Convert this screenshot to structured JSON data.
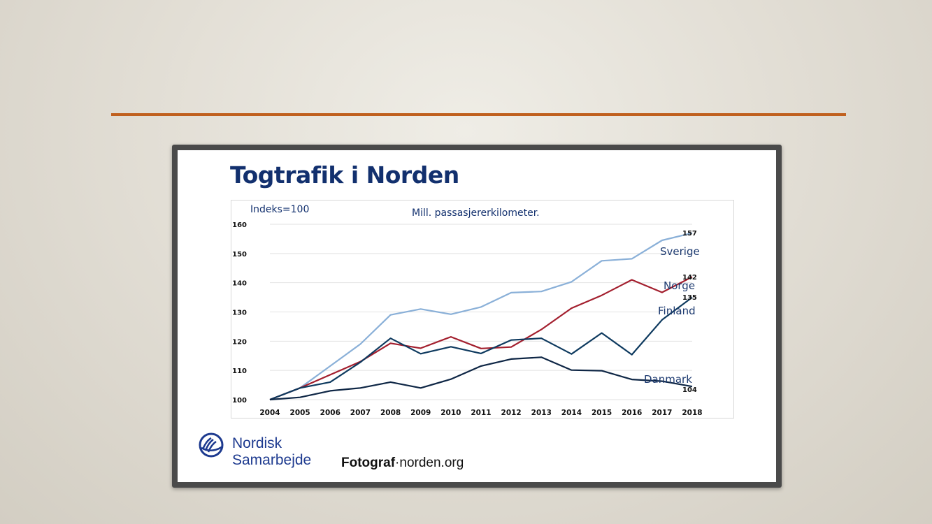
{
  "slide": {
    "title": "Togtrafik i Norden",
    "footer": {
      "org_line1": "Nordisk",
      "org_line2": "Samarbejde",
      "credit_bold": "Fotograf",
      "credit_rest": "·norden.org"
    }
  },
  "colors": {
    "rule": "#c0601e",
    "title": "#12306e",
    "logo": "#1d3a8f"
  },
  "chart_data": {
    "type": "line",
    "title": "Mill. passasjererkilometer.",
    "ylabel": "Indeks=100",
    "xlabel": "",
    "ylim": [
      100,
      160
    ],
    "yticks": [
      100,
      110,
      120,
      130,
      140,
      150,
      160
    ],
    "grid": true,
    "x": [
      "2004",
      "2005",
      "2006",
      "2007",
      "2008",
      "2009",
      "2010",
      "2011",
      "2012",
      "2013",
      "2014",
      "2015",
      "2016",
      "2017",
      "2018"
    ],
    "series": [
      {
        "name": "Sverige",
        "color": "#8ab0d8",
        "end_label": "157",
        "values": [
          100,
          104,
          111.5,
          119,
          129,
          131,
          129.2,
          131.7,
          136.6,
          137,
          140.3,
          147.5,
          148.2,
          154.5,
          157
        ]
      },
      {
        "name": "Norge",
        "color": "#a31f2e",
        "end_label": "142",
        "values": [
          100,
          104,
          108.5,
          113,
          119.3,
          117.6,
          121.5,
          117.5,
          118,
          124,
          131.3,
          135.7,
          141,
          136.7,
          142
        ]
      },
      {
        "name": "Finland",
        "color": "#0e3a5f",
        "end_label": "135",
        "values": [
          100,
          104,
          106,
          112.8,
          121,
          115.7,
          118.1,
          115.8,
          120.4,
          121,
          115.6,
          122.8,
          115.4,
          127.3,
          135
        ]
      },
      {
        "name": "Danmark",
        "color": "#0e2645",
        "end_label": "104",
        "values": [
          100,
          100.8,
          103,
          104,
          106,
          104,
          107,
          111.5,
          113.9,
          114.5,
          110.1,
          109.9,
          106.9,
          106.3,
          104.5
        ]
      }
    ]
  }
}
